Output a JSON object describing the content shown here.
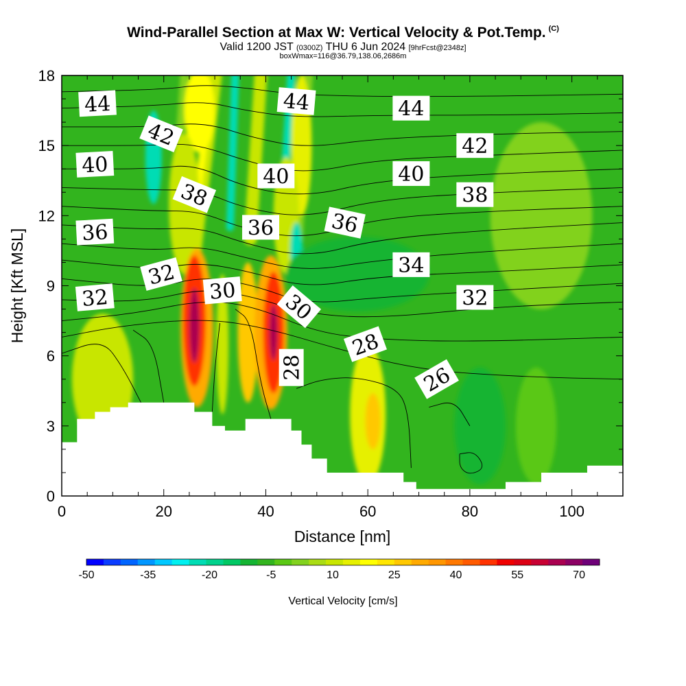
{
  "header": {
    "title": "Wind-Parallel Section at Max W: Vertical Velocity & Pot.Temp.",
    "copyright": "(C)",
    "valid_main": "Valid 1200 JST",
    "valid_utc": "(0300Z)",
    "valid_date": "THU 6 Jun 2024",
    "forecast": "[9hrFcst@2348z]",
    "box_info": "boxWmax=116@36.79,138.06,2686m"
  },
  "chart_data": {
    "type": "heatmap",
    "xlabel": "Distance [nm]",
    "ylabel": "Height [Kft MSL]",
    "xlim": [
      0,
      110
    ],
    "ylim": [
      0,
      18
    ],
    "x_ticks": [
      "0",
      "20",
      "40",
      "60",
      "80",
      "100"
    ],
    "y_ticks": [
      "0",
      "3",
      "6",
      "9",
      "12",
      "15",
      "18"
    ],
    "colorbar": {
      "label": "Vertical Velocity [cm/s]",
      "tick_labels": [
        "-50",
        "-35",
        "-20",
        "-5",
        "10",
        "25",
        "40",
        "55",
        "70"
      ],
      "colors": [
        "#0000ff",
        "#0a3cff",
        "#0064ff",
        "#0096ff",
        "#00c8ff",
        "#00f0f0",
        "#00dcb4",
        "#00d28c",
        "#00c864",
        "#14b432",
        "#32b41e",
        "#5ac814",
        "#82d21e",
        "#aadc14",
        "#c8e600",
        "#e6f000",
        "#ffff00",
        "#ffe600",
        "#ffc800",
        "#ffaa00",
        "#ff9600",
        "#ff7800",
        "#ff5a00",
        "#ff3200",
        "#f00000",
        "#dc0014",
        "#c80032",
        "#aa0050",
        "#8c0064",
        "#6e0078"
      ]
    },
    "terrain_kft": [
      [
        0,
        2.3
      ],
      [
        3,
        2.3
      ],
      [
        3,
        3.3
      ],
      [
        6.5,
        3.3
      ],
      [
        6.5,
        3.6
      ],
      [
        9.5,
        3.6
      ],
      [
        9.5,
        3.8
      ],
      [
        13,
        3.8
      ],
      [
        13,
        4
      ],
      [
        26,
        4
      ],
      [
        26,
        3.6
      ],
      [
        29.5,
        3.6
      ],
      [
        29.5,
        3
      ],
      [
        32,
        3
      ],
      [
        32,
        2.8
      ],
      [
        36,
        2.8
      ],
      [
        36,
        3.3
      ],
      [
        45,
        3.3
      ],
      [
        45,
        2.8
      ],
      [
        47,
        2.8
      ],
      [
        47,
        2.2
      ],
      [
        49,
        2.2
      ],
      [
        49,
        1.6
      ],
      [
        52,
        1.6
      ],
      [
        52,
        1
      ],
      [
        67,
        1
      ],
      [
        67,
        0.6
      ],
      [
        69.5,
        0.6
      ],
      [
        69.5,
        0.3
      ],
      [
        87,
        0.3
      ],
      [
        87,
        0.6
      ],
      [
        94,
        0.6
      ],
      [
        94,
        1
      ],
      [
        103,
        1
      ],
      [
        103,
        1.3
      ],
      [
        110,
        1.3
      ]
    ],
    "w_field": {
      "background": "#32b41e",
      "features": [
        {
          "x": 8,
          "y": 3.5,
          "rx": 4,
          "ry": 1.6,
          "color": "#ffff00"
        },
        {
          "x": 8,
          "y": 5,
          "rx": 6,
          "ry": 2.8,
          "color": "#c8e600"
        },
        {
          "x": 27,
          "y": 16.5,
          "rx": 3,
          "ry": 1.8,
          "color": "#ffff00"
        },
        {
          "x": 24,
          "y": 12.5,
          "rx": 3,
          "ry": 3,
          "color": "#c8e600"
        },
        {
          "x": 18,
          "y": 14.5,
          "rx": 1.6,
          "ry": 2,
          "color": "#00dcb4"
        },
        {
          "x": 47,
          "y": 15,
          "rx": 2,
          "ry": 3,
          "color": "#e6f000"
        },
        {
          "x": 44,
          "y": 12,
          "rx": 2.5,
          "ry": 2.5,
          "color": "#c8e600"
        },
        {
          "x": 46,
          "y": 10.5,
          "rx": 1.2,
          "ry": 1.2,
          "color": "#00dcb4"
        },
        {
          "x": 58,
          "y": 9.5,
          "rx": 14,
          "ry": 1.6,
          "color": "#14b432"
        },
        {
          "x": 60,
          "y": 3.5,
          "rx": 3.5,
          "ry": 3,
          "color": "#e6f000"
        },
        {
          "x": 61,
          "y": 3.2,
          "rx": 1.5,
          "ry": 1.2,
          "color": "#ffc800"
        },
        {
          "x": 94,
          "y": 12,
          "rx": 10,
          "ry": 4,
          "color": "#82d21e"
        },
        {
          "x": 82,
          "y": 3,
          "rx": 5,
          "ry": 2.5,
          "color": "#14b432"
        },
        {
          "x": 93,
          "y": 3,
          "rx": 4,
          "ry": 2.5,
          "color": "#5ac814"
        },
        {
          "x": 26.5,
          "y": 7.2,
          "rx": 3.2,
          "ry": 3.4,
          "color": "#ffaa00"
        },
        {
          "x": 26,
          "y": 7.5,
          "rx": 2.2,
          "ry": 2.8,
          "color": "#ff3200"
        },
        {
          "x": 26,
          "y": 7.3,
          "rx": 1,
          "ry": 1.6,
          "color": "#aa0050"
        },
        {
          "x": 31.5,
          "y": 6.5,
          "rx": 1.2,
          "ry": 3,
          "color": "#c8e600"
        },
        {
          "x": 36.5,
          "y": 7,
          "rx": 2,
          "ry": 3,
          "color": "#ffc800"
        },
        {
          "x": 41,
          "y": 7,
          "rx": 3.2,
          "ry": 3.3,
          "color": "#ffaa00"
        },
        {
          "x": 41.5,
          "y": 7,
          "rx": 2,
          "ry": 2.6,
          "color": "#ff3200"
        },
        {
          "x": 41.5,
          "y": 7,
          "rx": 0.8,
          "ry": 1.2,
          "color": "#aa0050"
        }
      ],
      "streaks": [
        {
          "x1": 30,
          "y1": 18,
          "x2": 26,
          "y2": 10.5,
          "width": 2.8,
          "color": "#c8e600"
        },
        {
          "x1": 29,
          "y1": 17,
          "x2": 26,
          "y2": 11.5,
          "width": 1.2,
          "color": "#ffff00"
        },
        {
          "x1": 24,
          "y1": 18,
          "x2": 22,
          "y2": 12,
          "width": 1.5,
          "color": "#82d21e"
        },
        {
          "x1": 34,
          "y1": 18,
          "x2": 33,
          "y2": 11.5,
          "width": 1.5,
          "color": "#00dcb4"
        },
        {
          "x1": 39,
          "y1": 18,
          "x2": 37,
          "y2": 11,
          "width": 2.5,
          "color": "#c8e600"
        },
        {
          "x1": 48,
          "y1": 18,
          "x2": 46,
          "y2": 11,
          "width": 2.5,
          "color": "#82d21e"
        },
        {
          "x1": 45,
          "y1": 18,
          "x2": 43,
          "y2": 11,
          "width": 1.6,
          "color": "#00dcb4"
        }
      ]
    },
    "theta_labels": [
      {
        "text": "44",
        "x": 7,
        "y": 16.8,
        "angle": -3
      },
      {
        "text": "44",
        "x": 46,
        "y": 16.9,
        "angle": 5
      },
      {
        "text": "44",
        "x": 68.5,
        "y": 16.6,
        "angle": 0
      },
      {
        "text": "42",
        "x": 19.5,
        "y": 15.5,
        "angle": 22
      },
      {
        "text": "42",
        "x": 81,
        "y": 15.0,
        "angle": 0
      },
      {
        "text": "40",
        "x": 6.5,
        "y": 14.2,
        "angle": -3
      },
      {
        "text": "40",
        "x": 42,
        "y": 13.7,
        "angle": 0
      },
      {
        "text": "40",
        "x": 68.5,
        "y": 13.8,
        "angle": 0
      },
      {
        "text": "38",
        "x": 26,
        "y": 12.9,
        "angle": 22
      },
      {
        "text": "38",
        "x": 81,
        "y": 12.9,
        "angle": 0
      },
      {
        "text": "36",
        "x": 6.5,
        "y": 11.3,
        "angle": -3
      },
      {
        "text": "36",
        "x": 39,
        "y": 11.5,
        "angle": 0
      },
      {
        "text": "36",
        "x": 55.5,
        "y": 11.7,
        "angle": 12
      },
      {
        "text": "34",
        "x": 68.5,
        "y": 9.9,
        "angle": 0
      },
      {
        "text": "32",
        "x": 6.5,
        "y": 8.5,
        "angle": -5
      },
      {
        "text": "32",
        "x": 19.5,
        "y": 9.5,
        "angle": -15
      },
      {
        "text": "32",
        "x": 81,
        "y": 8.5,
        "angle": 0
      },
      {
        "text": "30",
        "x": 31.5,
        "y": 8.8,
        "angle": -5
      },
      {
        "text": "30",
        "x": 46.5,
        "y": 8.1,
        "angle": 40
      },
      {
        "text": "28",
        "x": 59.5,
        "y": 6.5,
        "angle": -20
      },
      {
        "text": "28",
        "x": 45,
        "y": 5.5,
        "angle": -90
      },
      {
        "text": "26",
        "x": 73.5,
        "y": 5.0,
        "angle": -30
      }
    ],
    "theta_contours": [
      [
        [
          0,
          17.3
        ],
        [
          20,
          17.4
        ],
        [
          27,
          17.6
        ],
        [
          35,
          17.5
        ],
        [
          45,
          17.2
        ],
        [
          60,
          17.1
        ],
        [
          80,
          17.1
        ],
        [
          110,
          17.2
        ]
      ],
      [
        [
          0,
          16.6
        ],
        [
          18,
          16.7
        ],
        [
          28,
          16.9
        ],
        [
          36,
          16.5
        ],
        [
          46,
          16.2
        ],
        [
          62,
          16.3
        ],
        [
          85,
          16.3
        ],
        [
          110,
          16.4
        ]
      ],
      [
        [
          0,
          15.8
        ],
        [
          18,
          15.8
        ],
        [
          28,
          16.0
        ],
        [
          38,
          15.3
        ],
        [
          48,
          14.9
        ],
        [
          62,
          15.3
        ],
        [
          85,
          15.5
        ],
        [
          110,
          15.6
        ]
      ],
      [
        [
          0,
          15.0
        ],
        [
          18,
          15.0
        ],
        [
          26,
          15.1
        ],
        [
          38,
          14.2
        ],
        [
          48,
          13.8
        ],
        [
          62,
          14.4
        ],
        [
          85,
          14.6
        ],
        [
          110,
          14.8
        ]
      ],
      [
        [
          0,
          14.0
        ],
        [
          18,
          14.0
        ],
        [
          26,
          14.2
        ],
        [
          36,
          13.2
        ],
        [
          48,
          12.8
        ],
        [
          62,
          13.5
        ],
        [
          85,
          13.8
        ],
        [
          110,
          14.0
        ]
      ],
      [
        [
          0,
          13.2
        ],
        [
          18,
          13.1
        ],
        [
          27,
          13.1
        ],
        [
          36,
          12.3
        ],
        [
          48,
          11.9
        ],
        [
          62,
          12.7
        ],
        [
          85,
          13.0
        ],
        [
          110,
          13.2
        ]
      ],
      [
        [
          0,
          12.4
        ],
        [
          18,
          12.2
        ],
        [
          27,
          12.2
        ],
        [
          36,
          11.4
        ],
        [
          48,
          11.0
        ],
        [
          62,
          11.9
        ],
        [
          85,
          12.2
        ],
        [
          110,
          12.4
        ]
      ],
      [
        [
          0,
          11.6
        ],
        [
          18,
          11.4
        ],
        [
          27,
          11.5
        ],
        [
          36,
          10.8
        ],
        [
          48,
          10.2
        ],
        [
          62,
          11.0
        ],
        [
          85,
          11.4
        ],
        [
          110,
          11.7
        ]
      ],
      [
        [
          0,
          10.8
        ],
        [
          18,
          10.5
        ],
        [
          27,
          10.7
        ],
        [
          36,
          10.2
        ],
        [
          48,
          9.6
        ],
        [
          62,
          10.1
        ],
        [
          85,
          10.5
        ],
        [
          110,
          10.8
        ]
      ],
      [
        [
          0,
          10.1
        ],
        [
          18,
          9.7
        ],
        [
          27,
          10.0
        ],
        [
          37,
          9.6
        ],
        [
          48,
          8.9
        ],
        [
          62,
          9.4
        ],
        [
          85,
          9.6
        ],
        [
          110,
          9.9
        ]
      ],
      [
        [
          0,
          9.3
        ],
        [
          18,
          8.9
        ],
        [
          28,
          9.4
        ],
        [
          38,
          9.0
        ],
        [
          48,
          8.2
        ],
        [
          62,
          8.5
        ],
        [
          85,
          8.8
        ],
        [
          110,
          9.1
        ]
      ],
      [
        [
          0,
          8.4
        ],
        [
          16,
          8.3
        ],
        [
          28,
          8.9
        ],
        [
          38,
          8.5
        ],
        [
          48,
          7.8
        ],
        [
          62,
          7.6
        ],
        [
          85,
          8.1
        ],
        [
          110,
          8.3
        ]
      ],
      [
        [
          0,
          7.5
        ],
        [
          14,
          7.8
        ],
        [
          28,
          8.4
        ],
        [
          38,
          8.1
        ],
        [
          50,
          7.0
        ],
        [
          62,
          6.7
        ],
        [
          80,
          6.6
        ],
        [
          110,
          6.8
        ]
      ],
      [
        [
          0,
          6.8
        ],
        [
          12,
          7.3
        ],
        [
          28,
          7.6
        ],
        [
          40,
          7.2
        ],
        [
          54,
          6.3
        ],
        [
          70,
          5.4
        ],
        [
          90,
          5.1
        ],
        [
          110,
          5.0
        ]
      ],
      [
        [
          0,
          6.1
        ],
        [
          8,
          6.7
        ],
        [
          12,
          5.5
        ],
        [
          16,
          3.8
        ]
      ],
      [
        [
          14,
          7.1
        ],
        [
          18,
          6.5
        ],
        [
          20,
          4.0
        ]
      ],
      [
        [
          31,
          7.4
        ],
        [
          30,
          5.5
        ],
        [
          29.5,
          3.6
        ]
      ],
      [
        [
          34,
          8.0
        ],
        [
          37,
          7.5
        ],
        [
          39,
          4.8
        ],
        [
          41,
          3.3
        ]
      ],
      [
        [
          46,
          4.6
        ],
        [
          51,
          5.0
        ],
        [
          58,
          5.1
        ],
        [
          66,
          4.6
        ],
        [
          68,
          3.5
        ],
        [
          68.5,
          1.2
        ]
      ],
      [
        [
          72,
          3.8
        ],
        [
          77,
          4.1
        ],
        [
          80,
          3.0
        ]
      ],
      [
        [
          78,
          1.8
        ],
        [
          81,
          1.9
        ],
        [
          83,
          1.2
        ],
        [
          80,
          0.9
        ],
        [
          78,
          1.2
        ],
        [
          78,
          1.8
        ]
      ]
    ]
  }
}
